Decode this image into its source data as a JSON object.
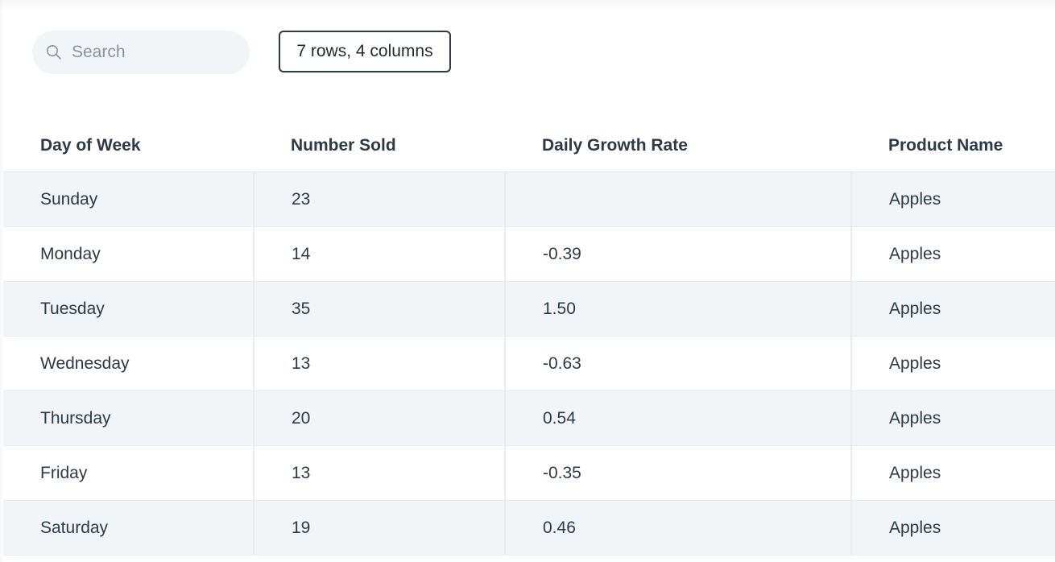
{
  "search": {
    "placeholder": "Search",
    "icon": "search-icon"
  },
  "summary_badge": "7 rows, 4 columns",
  "table": {
    "columns": [
      "Day of Week",
      "Number Sold",
      "Daily Growth Rate",
      "Product Name"
    ],
    "rows": [
      [
        "Sunday",
        "23",
        "",
        "Apples"
      ],
      [
        "Monday",
        "14",
        "-0.39",
        "Apples"
      ],
      [
        "Tuesday",
        "35",
        "1.50",
        "Apples"
      ],
      [
        "Wednesday",
        "13",
        "-0.63",
        "Apples"
      ],
      [
        "Thursday",
        "20",
        "0.54",
        "Apples"
      ],
      [
        "Friday",
        "13",
        "-0.35",
        "Apples"
      ],
      [
        "Saturday",
        "19",
        "0.46",
        "Apples"
      ]
    ]
  },
  "colors": {
    "text": "#2c3a48",
    "stripe": "#f1f5f8",
    "border": "#e8edf2"
  }
}
